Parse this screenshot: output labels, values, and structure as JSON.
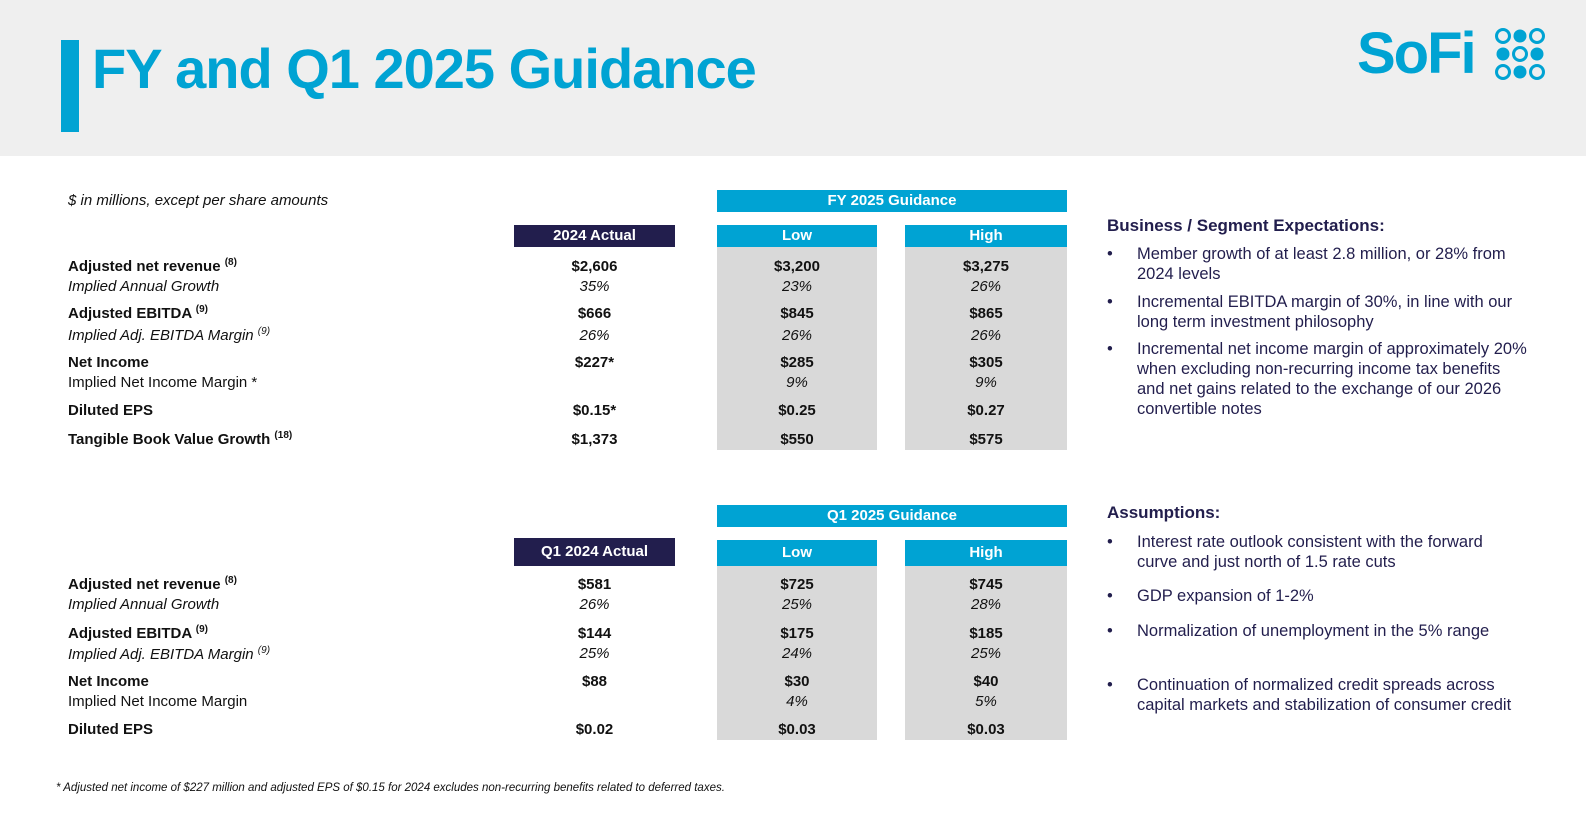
{
  "header": {
    "title": "FY and Q1 2025 Guidance",
    "logo_text": "SoFi",
    "brand_color": "#00a3d3",
    "navy_color": "#221e4d"
  },
  "note": "$ in millions, except per share amounts",
  "fy": {
    "group_header": "FY 2025 Guidance",
    "actual_header": "2024 Actual",
    "low_header": "Low",
    "high_header": "High",
    "rows": {
      "revenue_label": "Adjusted net revenue ",
      "revenue_sup": "(8)",
      "revenue": [
        "$2,606",
        "$3,200",
        "$3,275"
      ],
      "growth_label": "Implied Annual Growth",
      "growth": [
        "35%",
        "23%",
        "26%"
      ],
      "ebitda_label": "Adjusted EBITDA ",
      "ebitda_sup": "(9)",
      "ebitda": [
        "$666",
        "$845",
        "$865"
      ],
      "margin_label": "Implied Adj. EBITDA Margin ",
      "margin_sup": "(9)",
      "margin": [
        "26%",
        "26%",
        "26%"
      ],
      "ni_label": "Net Income",
      "ni": [
        "$227*",
        "$285",
        "$305"
      ],
      "ni_margin_label": "Implied Net Income Margin *",
      "ni_margin": [
        "",
        "9%",
        "9%"
      ],
      "eps_label": "Diluted EPS",
      "eps": [
        "$0.15*",
        "$0.25",
        "$0.27"
      ],
      "tbv_label": "Tangible Book Value Growth ",
      "tbv_sup": "(18)",
      "tbv": [
        "$1,373",
        "$550",
        "$575"
      ]
    }
  },
  "q1": {
    "group_header": "Q1 2025 Guidance",
    "actual_header": "Q1 2024 Actual",
    "low_header": "Low",
    "high_header": "High",
    "rows": {
      "revenue_label": "Adjusted net revenue ",
      "revenue_sup": "(8)",
      "revenue": [
        "$581",
        "$725",
        "$745"
      ],
      "growth_label": "Implied Annual Growth",
      "growth": [
        "26%",
        "25%",
        "28%"
      ],
      "ebitda_label": "Adjusted EBITDA ",
      "ebitda_sup": "(9)",
      "ebitda": [
        "$144",
        "$175",
        "$185"
      ],
      "margin_label": "Implied Adj. EBITDA Margin ",
      "margin_sup": "(9)",
      "margin": [
        "25%",
        "24%",
        "25%"
      ],
      "ni_label": "Net Income",
      "ni": [
        "$88",
        "$30",
        "$40"
      ],
      "ni_margin_label": "Implied Net Income Margin",
      "ni_margin": [
        "",
        "4%",
        "5%"
      ],
      "eps_label": "Diluted EPS",
      "eps": [
        "$0.02",
        "$0.03",
        "$0.03"
      ]
    }
  },
  "business": {
    "heading": "Business / Segment Expectations:",
    "bullets": [
      "Member growth of at least 2.8 million, or 28% from 2024 levels",
      "Incremental EBITDA margin of 30%, in line with our long term investment philosophy",
      "Incremental net income margin of approximately 20% when excluding non-recurring income tax benefits and net gains related to the exchange of our 2026 convertible notes"
    ]
  },
  "assumptions": {
    "heading": "Assumptions:",
    "bullets": [
      "Interest rate outlook consistent with the forward curve and just north of 1.5 rate cuts",
      "GDP expansion of 1-2%",
      "Normalization of unemployment in the 5% range",
      "Continuation of normalized credit spreads across capital markets and stabilization of consumer credit"
    ]
  },
  "footnote": "* Adjusted net income of $227 million and adjusted EPS of $0.15 for 2024 excludes non-recurring  benefits related to deferred taxes.",
  "bullet_char": "•"
}
